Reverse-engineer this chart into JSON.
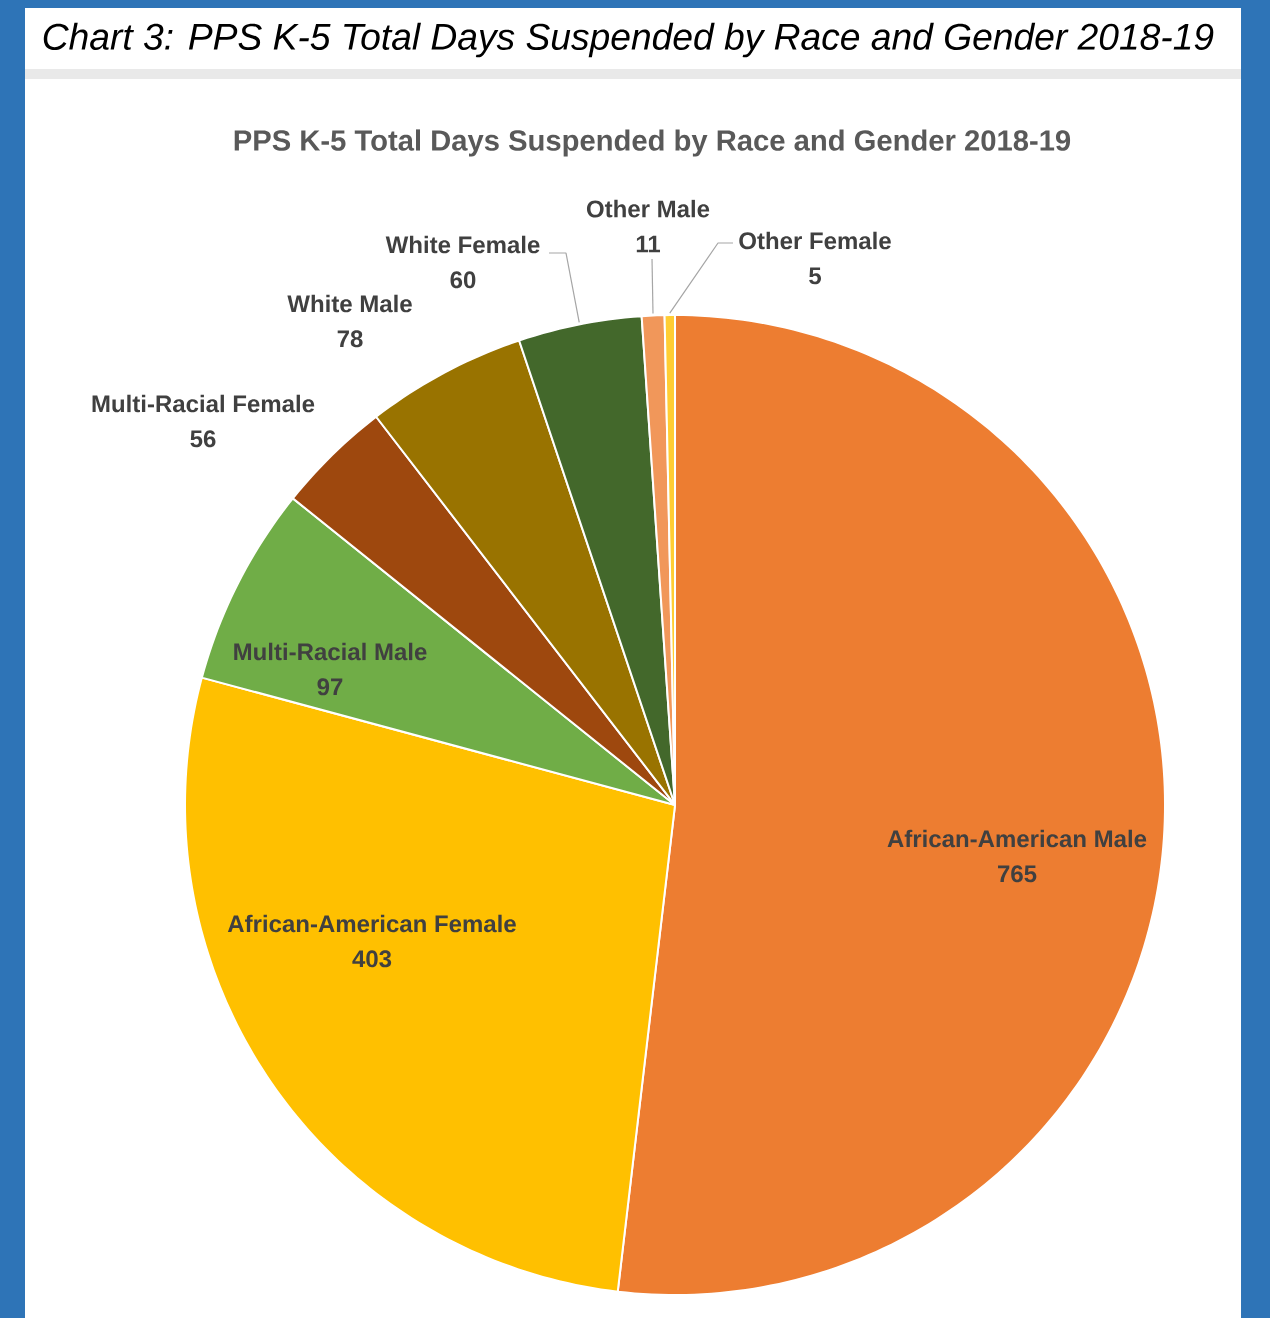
{
  "chart_data": {
    "type": "pie",
    "title": "Chart 3: PPS K-5 Total Days Suspended by Race and Gender 2018-19",
    "subtitle": "PPS K-5 Total Days Suspended by Race and Gender 2018-19",
    "categories": [
      "African-American Male",
      "African-American Female",
      "Multi-Racial Male",
      "Multi-Racial Female",
      "White Male",
      "White Female",
      "Other Male",
      "Other Female"
    ],
    "values": [
      765,
      403,
      97,
      56,
      78,
      60,
      11,
      5
    ],
    "colors": [
      "#ed7d31",
      "#ffc000",
      "#70ad47",
      "#9e480e",
      "#997300",
      "#43682b",
      "#f1975a",
      "#ffcd33"
    ],
    "data_labels": true
  }
}
